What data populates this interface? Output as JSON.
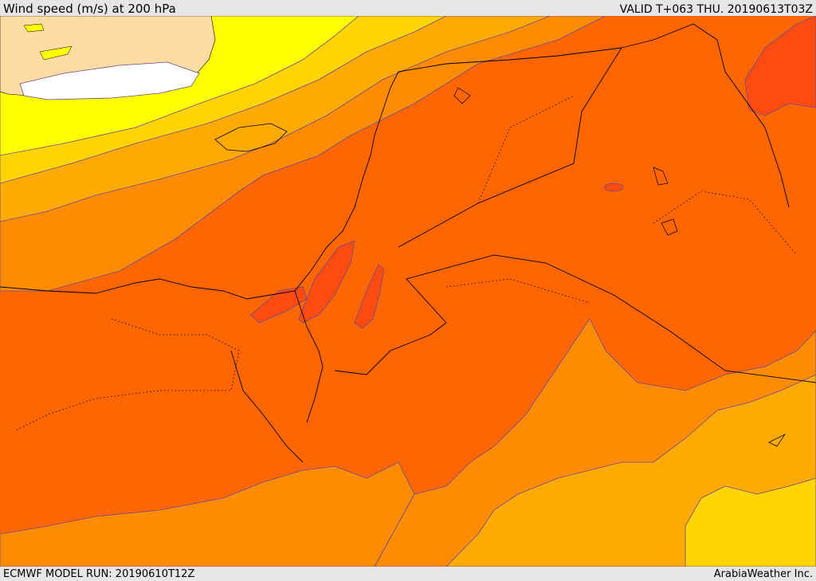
{
  "header": {
    "title": "Wind speed (m/s) at 200 hPa",
    "valid": "VALID T+063 THU. 20190613T03Z"
  },
  "footer": {
    "model_run": "ECMWF MODEL RUN: 20190610T12Z",
    "brand": "ArabiaWeather Inc."
  },
  "map": {
    "variable": "wind speed",
    "level_hPa": 200,
    "units": "m/s",
    "colors": {
      "white_low": "#ffffff",
      "band_1": "#ffff00",
      "band_2": "#ffd400",
      "band_3": "#ffaa00",
      "band_4": "#ff8c00",
      "band_5": "#ff6600",
      "band_6": "#ff4a10",
      "land_north": "#ffdca3",
      "contour": "#6a4a8c",
      "border": "#000000"
    }
  }
}
